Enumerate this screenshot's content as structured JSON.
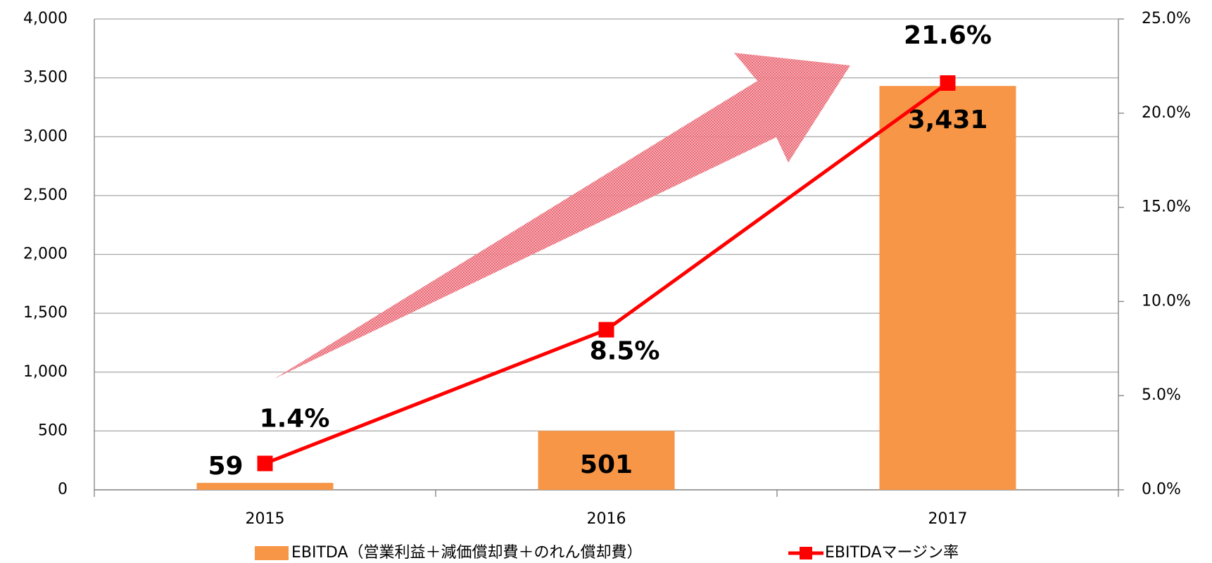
{
  "chart_data": {
    "type": "combo",
    "categories": [
      "2015",
      "2016",
      "2017"
    ],
    "series": [
      {
        "name": "EBITDA（営業利益＋減価償却費＋のれん償却費）",
        "type": "bar",
        "color": "#f79646",
        "values": [
          59,
          501,
          3431
        ],
        "value_labels": [
          "59",
          "501",
          "3,431"
        ]
      },
      {
        "name": "EBITDAマージン率",
        "type": "line",
        "axis": "y2",
        "color": "#ff0000",
        "values": [
          1.4,
          8.5,
          21.6
        ],
        "value_labels": [
          "1.4%",
          "8.5%",
          "21.6%"
        ]
      }
    ],
    "ylim": [
      0,
      4000
    ],
    "yticks": [
      0,
      500,
      {
        "value": 1000,
        "label": "1,000"
      },
      {
        "value": 1500,
        "label": "1,500"
      },
      {
        "value": 2000,
        "label": "2,000"
      },
      {
        "value": 2500,
        "label": "2,500"
      },
      {
        "value": 3000,
        "label": "3,000"
      },
      {
        "value": 3500,
        "label": "3,500"
      },
      {
        "value": 4000,
        "label": "4,000"
      }
    ],
    "y2lim": [
      0,
      25
    ],
    "y2ticks": [
      {
        "value": 0,
        "label": "0.0%"
      },
      {
        "value": 5,
        "label": "5.0%"
      },
      {
        "value": 10,
        "label": "10.0%"
      },
      {
        "value": 15,
        "label": "15.0%"
      },
      {
        "value": 20,
        "label": "20.0%"
      },
      {
        "value": 25,
        "label": "25.0%"
      }
    ],
    "grid": true,
    "legend": "bottom"
  }
}
